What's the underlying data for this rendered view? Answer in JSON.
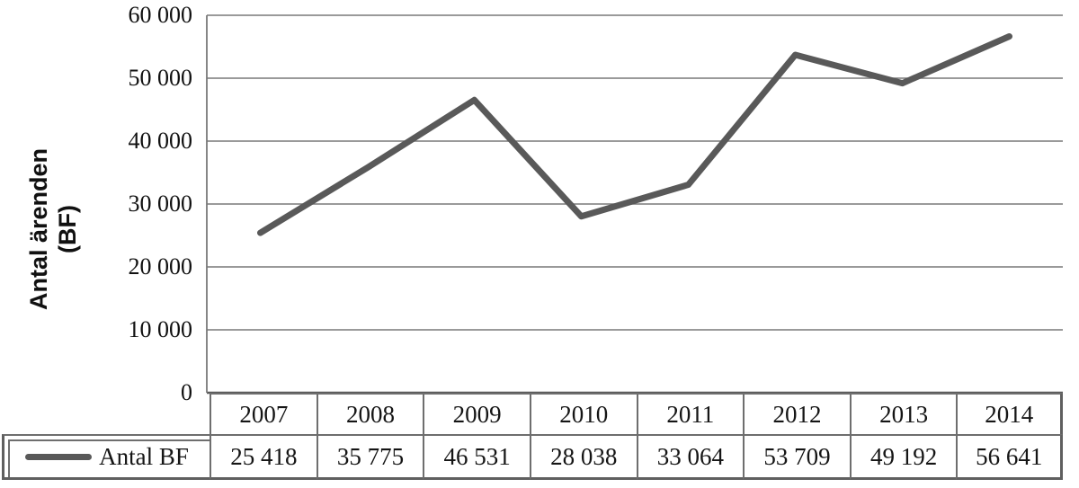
{
  "page": {
    "background": "#ffffff"
  },
  "chart_data": {
    "type": "line",
    "title": "",
    "ylabel": "Antal ärenden (BF)",
    "ylabel_lines": [
      "Antal ärenden",
      "(BF)"
    ],
    "categories": [
      "2007",
      "2008",
      "2009",
      "2010",
      "2011",
      "2012",
      "2013",
      "2014"
    ],
    "series": [
      {
        "name": "Antal BF",
        "values": [
          25418,
          35775,
          46531,
          28038,
          33064,
          53709,
          49192,
          56641
        ],
        "display_values": [
          "25 418",
          "35 775",
          "46 531",
          "28 038",
          "33 064",
          "53 709",
          "49 192",
          "56 641"
        ],
        "color": "#595959"
      }
    ],
    "ylim": [
      0,
      60000
    ],
    "yticks": [
      {
        "value": 0,
        "label": "0"
      },
      {
        "value": 10000,
        "label": "10 000"
      },
      {
        "value": 20000,
        "label": "20 000"
      },
      {
        "value": 30000,
        "label": "30 000"
      },
      {
        "value": 40000,
        "label": "40 000"
      },
      {
        "value": 50000,
        "label": "50 000"
      },
      {
        "value": 60000,
        "label": "60 000"
      }
    ],
    "grid": true,
    "legend_position": "table-left",
    "gridline_color": "#787878",
    "axis_color": "#595959",
    "table_border_color": "#6e6e6e"
  }
}
